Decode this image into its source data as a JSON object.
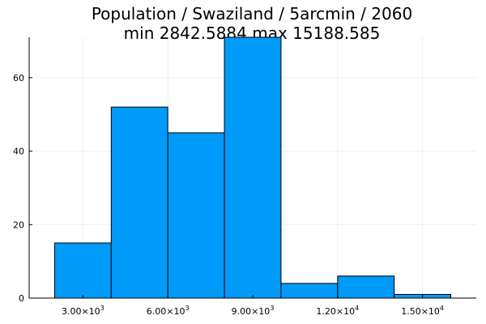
{
  "chart_data": {
    "type": "bar",
    "title_line1": "Population / Swaziland / 5arcmin / 2060",
    "title_line2": "min 2842.5884  max 15188.585",
    "xlabel": "",
    "ylabel": "",
    "bins": [
      {
        "x0": 2000,
        "x1": 4000,
        "count": 15
      },
      {
        "x0": 4000,
        "x1": 6000,
        "count": 52
      },
      {
        "x0": 6000,
        "x1": 8000,
        "count": 45
      },
      {
        "x0": 8000,
        "x1": 10000,
        "count": 71
      },
      {
        "x0": 10000,
        "x1": 12000,
        "count": 4
      },
      {
        "x0": 12000,
        "x1": 14000,
        "count": 6
      },
      {
        "x0": 14000,
        "x1": 16000,
        "count": 1
      }
    ],
    "xlim": [
      1100,
      16900
    ],
    "ylim": [
      0,
      71
    ],
    "xticks": [
      {
        "value": 3000,
        "mantissa": "3.00×10",
        "exp": "3"
      },
      {
        "value": 6000,
        "mantissa": "6.00×10",
        "exp": "3"
      },
      {
        "value": 9000,
        "mantissa": "9.00×10",
        "exp": "3"
      },
      {
        "value": 12000,
        "mantissa": "1.20×10",
        "exp": "4"
      },
      {
        "value": 15000,
        "mantissa": "1.50×10",
        "exp": "4"
      }
    ],
    "yticks": [
      0,
      20,
      40,
      60
    ],
    "grid": true,
    "legend": "none",
    "color": "#009af9"
  }
}
